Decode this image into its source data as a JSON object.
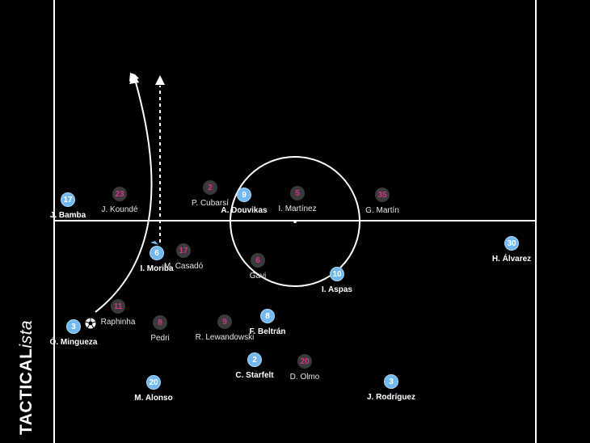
{
  "brand": {
    "strong": "TACTICAL",
    "light": "ista"
  },
  "colors": {
    "background": "#000000",
    "lines": "#ffffff",
    "team_blue": "#71b9f0",
    "team_dark": "#3a3a3a",
    "team_dark_number": "#d6338c"
  },
  "team_blue_players": [
    {
      "number": "17",
      "name": "J. Bamba"
    },
    {
      "number": "9",
      "name": "A. Douvikas"
    },
    {
      "number": "30",
      "name": "H. Álvarez"
    },
    {
      "number": "6",
      "name": "I. Moriba"
    },
    {
      "number": "10",
      "name": "I. Aspas"
    },
    {
      "number": "3",
      "name": "Ó. Mingueza"
    },
    {
      "number": "8",
      "name": "F. Beltrán"
    },
    {
      "number": "2",
      "name": "C. Starfelt"
    },
    {
      "number": "20",
      "name": "M. Alonso"
    },
    {
      "number": "3",
      "name": "J. Rodríguez"
    }
  ],
  "team_dark_players": [
    {
      "number": "23",
      "name": "J. Koundé"
    },
    {
      "number": "2",
      "name": "P. Cubarsí"
    },
    {
      "number": "5",
      "name": "I. Martínez"
    },
    {
      "number": "35",
      "name": "G. Martín"
    },
    {
      "number": "17",
      "name": "M. Casadó"
    },
    {
      "number": "6",
      "name": "Gavi"
    },
    {
      "number": "11",
      "name": "Raphinha"
    },
    {
      "number": "8",
      "name": "Pedri"
    },
    {
      "number": "9",
      "name": "R. Lewandowski"
    },
    {
      "number": "20",
      "name": "D. Olmo"
    }
  ],
  "ball": {
    "icon": "football-icon"
  }
}
